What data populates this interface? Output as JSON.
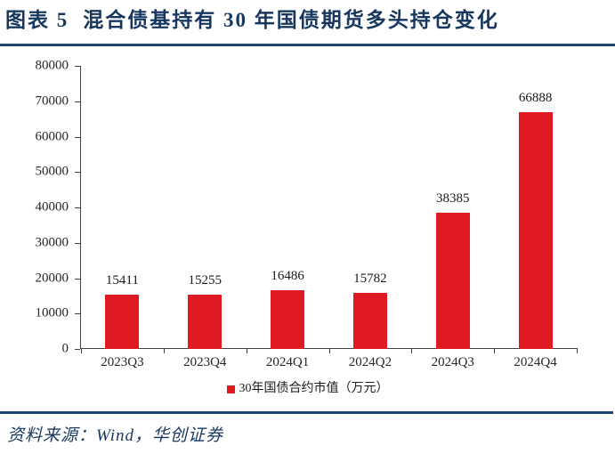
{
  "header": {
    "figure_label": "图表 5",
    "title": "混合债基持有 30 年国债期货多头持仓变化"
  },
  "chart_data": {
    "type": "bar",
    "categories": [
      "2023Q3",
      "2023Q4",
      "2024Q1",
      "2024Q2",
      "2024Q3",
      "2024Q4"
    ],
    "values": [
      15411,
      15255,
      16486,
      15782,
      38385,
      66888
    ],
    "data_labels": [
      "15411",
      "15255",
      "16486",
      "15782",
      "38385",
      "66888"
    ],
    "title": "",
    "xlabel": "",
    "ylabel": "",
    "ylim": [
      0,
      80000
    ],
    "yticks": [
      0,
      10000,
      20000,
      30000,
      40000,
      50000,
      60000,
      70000,
      80000
    ],
    "grid": false,
    "legend_position": "bottom",
    "legend_label": "30年国债合约市值（万元）",
    "bar_color": "#e01a22"
  },
  "footer": {
    "source_label": "资料来源：Wind，华创证券"
  },
  "colors": {
    "title_navy": "#17375e",
    "rule_navy": "#1d4673",
    "bar_red": "#e01a22",
    "axis_gray": "#404040",
    "label_black": "#262626"
  }
}
